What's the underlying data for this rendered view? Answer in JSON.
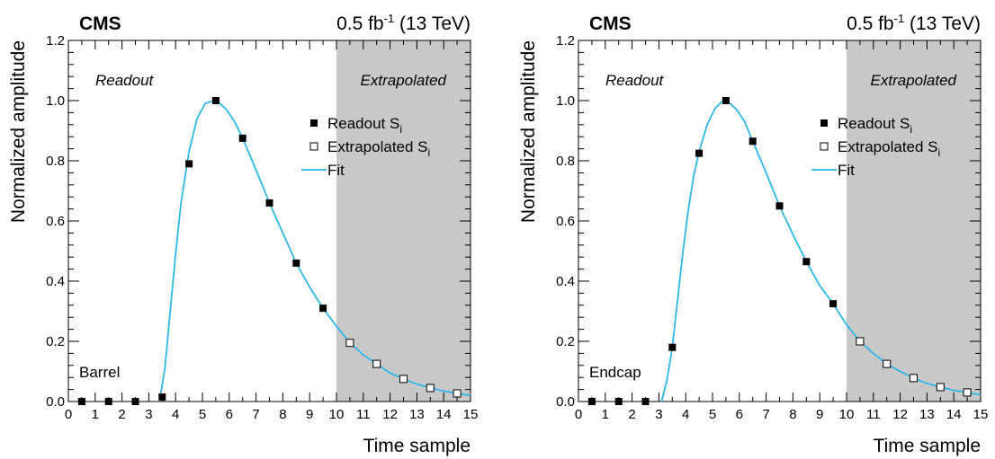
{
  "chart_data": [
    {
      "type": "scatter",
      "experiment": "CMS",
      "lumi_label": "0.5 fb",
      "lumi_exp": "-1",
      "energy_label": " (13 TeV)",
      "xlabel": "Time sample",
      "ylabel": "Normalized amplitude",
      "xlim": [
        0,
        15
      ],
      "ylim": [
        0,
        1.2
      ],
      "xticks": [
        "0",
        "1",
        "2",
        "3",
        "4",
        "5",
        "6",
        "7",
        "8",
        "9",
        "10",
        "11",
        "12",
        "13",
        "14",
        "15"
      ],
      "yticks": [
        "0.0",
        "0.2",
        "0.4",
        "0.6",
        "0.8",
        "1.0",
        "1.2"
      ],
      "region_readout": "Readout",
      "region_extrapolated": "Extrapolated",
      "extrapolated_from": 10,
      "region_label": "Barrel",
      "legend": {
        "placement": "top-right",
        "entries": [
          {
            "label": "Readout S",
            "sub": "i",
            "style": "filled-square"
          },
          {
            "label": "Extrapolated S",
            "sub": "i",
            "style": "open-square"
          },
          {
            "label": "Fit",
            "style": "line"
          }
        ]
      },
      "series": [
        {
          "name": "Readout S",
          "style": "filled-square",
          "x": [
            0.5,
            1.5,
            2.5,
            3.5,
            4.5,
            5.5,
            6.5,
            7.5,
            8.5,
            9.5
          ],
          "y": [
            0.0,
            0.0,
            0.0,
            0.015,
            0.79,
            1.0,
            0.875,
            0.66,
            0.46,
            0.31
          ]
        },
        {
          "name": "Extrapolated S",
          "style": "open-square",
          "x": [
            10.5,
            11.5,
            12.5,
            13.5,
            14.5
          ],
          "y": [
            0.195,
            0.125,
            0.075,
            0.045,
            0.027
          ]
        },
        {
          "name": "Fit",
          "style": "line",
          "x": [
            3.4,
            3.6,
            3.8,
            4.0,
            4.2,
            4.5,
            4.8,
            5.1,
            5.4,
            5.6,
            5.9,
            6.2,
            6.5,
            7.0,
            7.5,
            8.0,
            8.5,
            9.0,
            9.5,
            10.0,
            10.5,
            11.0,
            11.5,
            12.0,
            12.5,
            13.0,
            13.5,
            14.0,
            14.5,
            15.0
          ],
          "y": [
            0.0,
            0.11,
            0.3,
            0.49,
            0.66,
            0.83,
            0.94,
            0.99,
            1.0,
            0.995,
            0.97,
            0.93,
            0.875,
            0.77,
            0.66,
            0.56,
            0.46,
            0.38,
            0.31,
            0.25,
            0.195,
            0.155,
            0.125,
            0.095,
            0.075,
            0.058,
            0.045,
            0.035,
            0.027,
            0.02
          ]
        }
      ]
    },
    {
      "type": "scatter",
      "experiment": "CMS",
      "lumi_label": "0.5 fb",
      "lumi_exp": "-1",
      "energy_label": " (13 TeV)",
      "xlabel": "Time sample",
      "ylabel": "Normalized amplitude",
      "xlim": [
        0,
        15
      ],
      "ylim": [
        0,
        1.2
      ],
      "xticks": [
        "0",
        "1",
        "2",
        "3",
        "4",
        "5",
        "6",
        "7",
        "8",
        "9",
        "10",
        "11",
        "12",
        "13",
        "14",
        "15"
      ],
      "yticks": [
        "0.0",
        "0.2",
        "0.4",
        "0.6",
        "0.8",
        "1.0",
        "1.2"
      ],
      "region_readout": "Readout",
      "region_extrapolated": "Extrapolated",
      "extrapolated_from": 10,
      "region_label": "Endcap",
      "legend": {
        "placement": "top-right",
        "entries": [
          {
            "label": "Readout S",
            "sub": "i",
            "style": "filled-square"
          },
          {
            "label": "Extrapolated S",
            "sub": "i",
            "style": "open-square"
          },
          {
            "label": "Fit",
            "style": "line"
          }
        ]
      },
      "series": [
        {
          "name": "Readout S",
          "style": "filled-square",
          "x": [
            0.5,
            1.5,
            2.5,
            3.5,
            4.5,
            5.5,
            6.5,
            7.5,
            8.5,
            9.5
          ],
          "y": [
            0.0,
            0.0,
            0.0,
            0.18,
            0.825,
            1.0,
            0.865,
            0.65,
            0.465,
            0.325
          ]
        },
        {
          "name": "Extrapolated S",
          "style": "open-square",
          "x": [
            10.5,
            11.5,
            12.5,
            13.5,
            14.5
          ],
          "y": [
            0.2,
            0.125,
            0.078,
            0.048,
            0.03
          ]
        },
        {
          "name": "Fit",
          "style": "line",
          "x": [
            3.1,
            3.3,
            3.5,
            3.7,
            3.9,
            4.1,
            4.3,
            4.5,
            4.8,
            5.1,
            5.4,
            5.6,
            5.9,
            6.2,
            6.5,
            7.0,
            7.5,
            8.0,
            8.5,
            9.0,
            9.5,
            10.0,
            10.5,
            11.0,
            11.5,
            12.0,
            12.5,
            13.0,
            13.5,
            14.0,
            14.5,
            15.0
          ],
          "y": [
            0.0,
            0.07,
            0.18,
            0.34,
            0.5,
            0.64,
            0.75,
            0.83,
            0.92,
            0.975,
            1.0,
            0.995,
            0.97,
            0.93,
            0.865,
            0.76,
            0.65,
            0.555,
            0.465,
            0.385,
            0.325,
            0.255,
            0.2,
            0.16,
            0.125,
            0.1,
            0.078,
            0.06,
            0.048,
            0.037,
            0.03,
            0.022
          ]
        }
      ]
    }
  ]
}
